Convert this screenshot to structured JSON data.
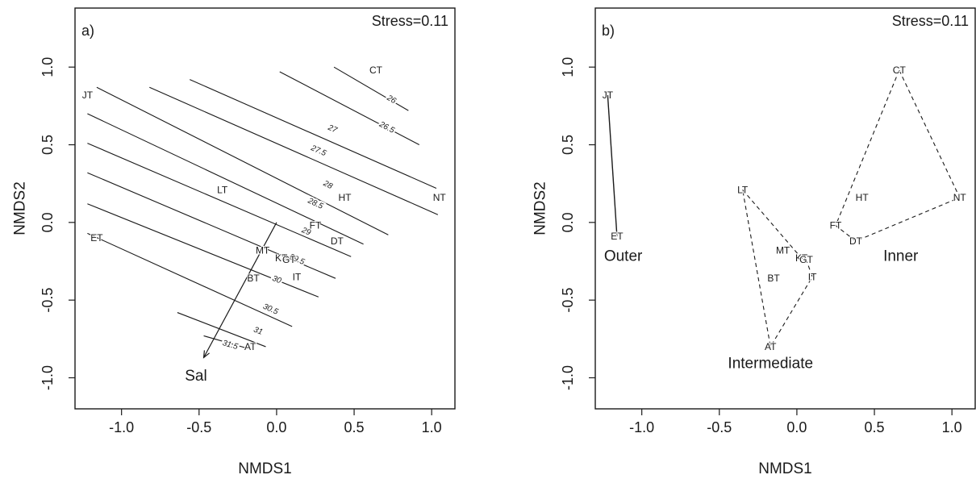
{
  "chart_data": [
    {
      "type": "scatter",
      "panel_label": "a)",
      "annotation": "Stress=0.11",
      "xlabel": "NMDS1",
      "ylabel": "NMDS2",
      "xlim": [
        -1.3,
        1.15
      ],
      "ylim": [
        -1.2,
        1.38
      ],
      "xticks": [
        -1.0,
        -0.5,
        0.0,
        0.5,
        1.0
      ],
      "xtick_labels": [
        "-1.0",
        "-0.5",
        "0.0",
        "0.5",
        "1.0"
      ],
      "yticks": [
        -1.0,
        -0.5,
        0.0,
        0.5,
        1.0
      ],
      "ytick_labels": [
        "-1.0",
        "-0.5",
        "0.0",
        "0.5",
        "1.0"
      ],
      "points": [
        {
          "label": "CT",
          "x": 0.64,
          "y": 0.98
        },
        {
          "label": "JT",
          "x": -1.22,
          "y": 0.82
        },
        {
          "label": "NT",
          "x": 1.05,
          "y": 0.16
        },
        {
          "label": "HT",
          "x": 0.44,
          "y": 0.16
        },
        {
          "label": "LT",
          "x": -0.35,
          "y": 0.21
        },
        {
          "label": "FT",
          "x": 0.25,
          "y": -0.02
        },
        {
          "label": "DT",
          "x": 0.39,
          "y": -0.12
        },
        {
          "label": "ET",
          "x": -1.16,
          "y": -0.1
        },
        {
          "label": "MT",
          "x": -0.09,
          "y": -0.18
        },
        {
          "label": "KT",
          "x": 0.03,
          "y": -0.23
        },
        {
          "label": "GT",
          "x": 0.08,
          "y": -0.24
        },
        {
          "label": "IT",
          "x": 0.13,
          "y": -0.35
        },
        {
          "label": "BT",
          "x": -0.15,
          "y": -0.36
        },
        {
          "label": "AT",
          "x": -0.17,
          "y": -0.8
        }
      ],
      "contours": [
        {
          "level": "26",
          "from": [
            0.37,
            1.0
          ],
          "to": [
            0.85,
            0.72
          ],
          "label_at": [
            0.74,
            0.79
          ]
        },
        {
          "level": "26.5",
          "from": [
            0.02,
            0.97
          ],
          "to": [
            0.92,
            0.5
          ],
          "label_at": [
            0.71,
            0.61
          ]
        },
        {
          "level": "27",
          "from": [
            -0.56,
            0.92
          ],
          "to": [
            1.03,
            0.22
          ],
          "label_at": [
            0.36,
            0.6
          ]
        },
        {
          "level": "27.5",
          "from": [
            -0.82,
            0.87
          ],
          "to": [
            1.04,
            0.05
          ],
          "label_at": [
            0.27,
            0.46
          ]
        },
        {
          "level": "28",
          "from": [
            -1.16,
            0.87
          ],
          "to": [
            0.72,
            -0.08
          ],
          "label_at": [
            0.33,
            0.24
          ]
        },
        {
          "level": "28.5",
          "from": [
            -1.22,
            0.7
          ],
          "to": [
            0.56,
            -0.14
          ],
          "label_at": [
            0.25,
            0.12
          ]
        },
        {
          "level": "29",
          "from": [
            -1.22,
            0.51
          ],
          "to": [
            0.48,
            -0.22
          ],
          "label_at": [
            0.19,
            -0.06
          ]
        },
        {
          "level": "29.5",
          "from": [
            -1.22,
            0.32
          ],
          "to": [
            0.38,
            -0.36
          ],
          "label_at": [
            0.13,
            -0.24
          ]
        },
        {
          "level": "30",
          "from": [
            -1.22,
            0.12
          ],
          "to": [
            0.27,
            -0.48
          ],
          "label_at": [
            0.0,
            -0.37
          ]
        },
        {
          "level": "30.5",
          "from": [
            -1.22,
            -0.07
          ],
          "to": [
            0.1,
            -0.67
          ],
          "label_at": [
            -0.04,
            -0.56
          ]
        },
        {
          "level": "31",
          "from": [
            -0.64,
            -0.58
          ],
          "to": [
            -0.07,
            -0.8
          ],
          "label_at": [
            -0.12,
            -0.7
          ]
        },
        {
          "level": "31.5",
          "from": [
            -0.47,
            -0.73
          ],
          "to": [
            -0.19,
            -0.81
          ],
          "label_at": [
            -0.3,
            -0.79
          ]
        }
      ],
      "vector": {
        "label": "Sal",
        "from": [
          0.0,
          0.0
        ],
        "to": [
          -0.47,
          -0.87
        ],
        "label_at": [
          -0.52,
          -0.99
        ]
      }
    },
    {
      "type": "scatter",
      "panel_label": "b)",
      "annotation": "Stress=0.11",
      "xlabel": "NMDS1",
      "ylabel": "NMDS2",
      "xlim": [
        -1.3,
        1.15
      ],
      "ylim": [
        -1.2,
        1.38
      ],
      "xticks": [
        -1.0,
        -0.5,
        0.0,
        0.5,
        1.0
      ],
      "xtick_labels": [
        "-1.0",
        "-0.5",
        "0.0",
        "0.5",
        "1.0"
      ],
      "yticks": [
        -1.0,
        -0.5,
        0.0,
        0.5,
        1.0
      ],
      "ytick_labels": [
        "-1.0",
        "-0.5",
        "0.0",
        "0.5",
        "1.0"
      ],
      "points": [
        {
          "label": "CT",
          "x": 0.66,
          "y": 0.98
        },
        {
          "label": "JT",
          "x": -1.22,
          "y": 0.82
        },
        {
          "label": "NT",
          "x": 1.05,
          "y": 0.16
        },
        {
          "label": "HT",
          "x": 0.42,
          "y": 0.16
        },
        {
          "label": "LT",
          "x": -0.35,
          "y": 0.21
        },
        {
          "label": "FT",
          "x": 0.25,
          "y": -0.02
        },
        {
          "label": "DT",
          "x": 0.38,
          "y": -0.12
        },
        {
          "label": "ET",
          "x": -1.16,
          "y": -0.09
        },
        {
          "label": "MT",
          "x": -0.09,
          "y": -0.18
        },
        {
          "label": "KT",
          "x": 0.03,
          "y": -0.23
        },
        {
          "label": "GT",
          "x": 0.06,
          "y": -0.24
        },
        {
          "label": "IT",
          "x": 0.1,
          "y": -0.35
        },
        {
          "label": "BT",
          "x": -0.15,
          "y": -0.36
        },
        {
          "label": "AT",
          "x": -0.17,
          "y": -0.8
        }
      ],
      "groups": [
        {
          "name": "Outer",
          "members": [
            "JT",
            "ET"
          ],
          "label_at": [
            -1.12,
            -0.22
          ],
          "line": "solid"
        },
        {
          "name": "Intermediate",
          "members": [
            "LT",
            "KT",
            "GT",
            "IT",
            "AT"
          ],
          "label_at": [
            -0.17,
            -0.91
          ],
          "line": "dashed"
        },
        {
          "name": "Inner",
          "members": [
            "CT",
            "NT",
            "DT",
            "FT"
          ],
          "label_at": [
            0.67,
            -0.22
          ],
          "line": "dashed"
        }
      ]
    }
  ]
}
